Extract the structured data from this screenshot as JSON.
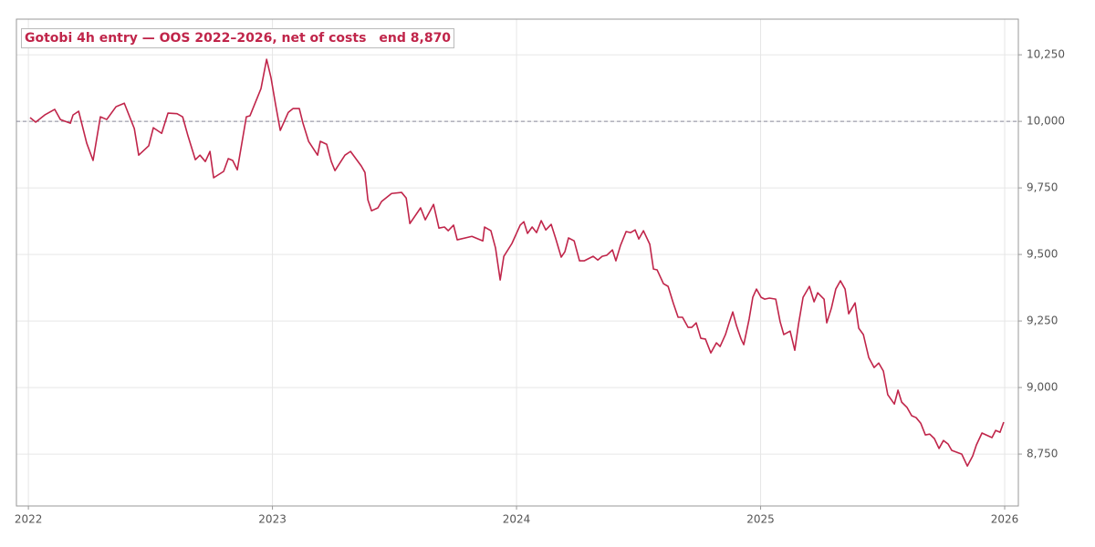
{
  "chart_data": {
    "type": "line",
    "title": "Gotobi 4h entry — OOS 2022–2026, net of costs",
    "annotation": "end 8,870",
    "color": "#c0254a",
    "hline": 10000,
    "grid": true,
    "xlim": [
      2021.951,
      2026.056
    ],
    "xticks": [
      2022,
      2023,
      2024,
      2025,
      2026
    ],
    "ylim": [
      8555,
      10384
    ],
    "yticks": [
      {
        "value": 8750,
        "label": "8,750"
      },
      {
        "value": 9000,
        "label": "9,000"
      },
      {
        "value": 9250,
        "label": "9,250"
      },
      {
        "value": 9500,
        "label": "9,500"
      },
      {
        "value": 9750,
        "label": "9,750"
      },
      {
        "value": 10000,
        "label": "10,000"
      },
      {
        "value": 10250,
        "label": "10,250"
      }
    ],
    "x": [
      2022.007,
      2022.03,
      2022.067,
      2022.108,
      2022.131,
      2022.172,
      2022.183,
      2022.206,
      2022.239,
      2022.265,
      2022.295,
      2022.321,
      2022.359,
      2022.393,
      2022.434,
      2022.452,
      2022.493,
      2022.512,
      2022.546,
      2022.572,
      2022.609,
      2022.632,
      2022.654,
      2022.684,
      2022.703,
      2022.725,
      2022.744,
      2022.759,
      2022.8,
      2022.819,
      2022.837,
      2022.856,
      2022.893,
      2022.908,
      2022.953,
      2022.976,
      2022.994,
      2023.013,
      2023.032,
      2023.065,
      2023.084,
      2023.11,
      2023.125,
      2023.148,
      2023.185,
      2023.196,
      2023.222,
      2023.241,
      2023.256,
      2023.297,
      2023.32,
      2023.364,
      2023.379,
      2023.391,
      2023.406,
      2023.432,
      2023.447,
      2023.488,
      2023.529,
      2023.548,
      2023.563,
      2023.607,
      2023.626,
      2023.66,
      2023.682,
      2023.705,
      2023.72,
      2023.742,
      2023.757,
      2023.817,
      2023.862,
      2023.869,
      2023.895,
      2023.914,
      2023.933,
      2023.948,
      2023.981,
      2024.015,
      2024.03,
      2024.045,
      2024.064,
      2024.082,
      2024.101,
      2024.12,
      2024.142,
      2024.161,
      2024.183,
      2024.198,
      2024.213,
      2024.236,
      2024.258,
      2024.277,
      2024.314,
      2024.333,
      2024.351,
      2024.37,
      2024.393,
      2024.407,
      2024.426,
      2024.449,
      2024.467,
      2024.486,
      2024.501,
      2024.52,
      2024.546,
      2024.561,
      2024.576,
      2024.602,
      2024.621,
      2024.643,
      2024.662,
      2024.68,
      2024.703,
      2024.718,
      2024.736,
      2024.755,
      2024.774,
      2024.796,
      2024.819,
      2024.834,
      2024.856,
      2024.871,
      2024.886,
      2024.901,
      2024.92,
      2024.931,
      2024.953,
      2024.968,
      2024.983,
      2025.002,
      2025.017,
      2025.036,
      2025.062,
      2025.08,
      2025.095,
      2025.121,
      2025.14,
      2025.155,
      2025.174,
      2025.2,
      2025.219,
      2025.234,
      2025.26,
      2025.271,
      2025.29,
      2025.308,
      2025.327,
      2025.346,
      2025.361,
      2025.387,
      2025.402,
      2025.421,
      2025.443,
      2025.465,
      2025.484,
      2025.503,
      2025.521,
      2025.548,
      2025.563,
      2025.578,
      2025.6,
      2025.619,
      2025.637,
      2025.656,
      2025.675,
      2025.693,
      2025.712,
      2025.731,
      2025.749,
      2025.768,
      2025.783,
      2025.824,
      2025.847,
      2025.869,
      2025.884,
      2025.907,
      2025.948,
      2025.963,
      2025.981,
      2025.996
    ],
    "values": [
      10014,
      9997,
      10024,
      10045,
      10007,
      9993,
      10024,
      10038,
      9918,
      9853,
      10017,
      10007,
      10055,
      10068,
      9973,
      9873,
      9908,
      9976,
      9955,
      10031,
      10029,
      10017,
      9945,
      9856,
      9873,
      9849,
      9887,
      9788,
      9812,
      9860,
      9853,
      9818,
      10017,
      10021,
      10123,
      10233,
      10164,
      10062,
      9966,
      10034,
      10048,
      10048,
      9993,
      9925,
      9873,
      9925,
      9914,
      9849,
      9815,
      9873,
      9887,
      9832,
      9808,
      9705,
      9664,
      9675,
      9699,
      9729,
      9733,
      9712,
      9616,
      9675,
      9630,
      9688,
      9599,
      9603,
      9589,
      9610,
      9555,
      9568,
      9551,
      9603,
      9589,
      9524,
      9404,
      9493,
      9541,
      9610,
      9623,
      9579,
      9603,
      9582,
      9627,
      9592,
      9613,
      9558,
      9490,
      9510,
      9562,
      9551,
      9476,
      9476,
      9493,
      9479,
      9493,
      9497,
      9517,
      9476,
      9534,
      9586,
      9582,
      9592,
      9558,
      9589,
      9538,
      9445,
      9442,
      9390,
      9380,
      9315,
      9264,
      9264,
      9226,
      9226,
      9243,
      9185,
      9182,
      9130,
      9168,
      9154,
      9199,
      9243,
      9284,
      9233,
      9182,
      9161,
      9257,
      9339,
      9370,
      9339,
      9332,
      9336,
      9332,
      9247,
      9199,
      9212,
      9140,
      9236,
      9339,
      9380,
      9322,
      9356,
      9332,
      9243,
      9298,
      9370,
      9401,
      9370,
      9277,
      9318,
      9223,
      9199,
      9113,
      9075,
      9092,
      9062,
      8973,
      8938,
      8990,
      8945,
      8925,
      8894,
      8887,
      8866,
      8822,
      8825,
      8808,
      8771,
      8801,
      8788,
      8764,
      8750,
      8705,
      8743,
      8784,
      8829,
      8812,
      8839,
      8832,
      8870
    ]
  }
}
